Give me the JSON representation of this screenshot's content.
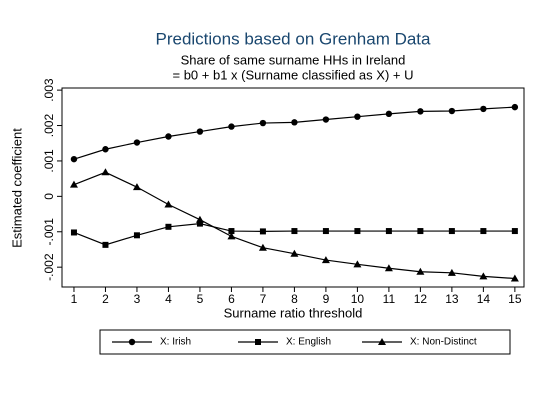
{
  "chart_data": {
    "type": "line",
    "title": "Predictions based on Grenham Data",
    "subtitle": [
      "Share of same surname HHs in Ireland",
      "= b0 + b1 x (Surname classified as X) + U"
    ],
    "x_label": "Surname ratio threshold",
    "y_label": "Estimated coefficient",
    "x": [
      1,
      2,
      3,
      4,
      5,
      6,
      7,
      8,
      9,
      10,
      11,
      12,
      13,
      14,
      15
    ],
    "series": [
      {
        "name": "X: Irish",
        "color": "#000000",
        "marker": "circle",
        "values": [
          0.00105,
          0.00133,
          0.00152,
          0.00169,
          0.00183,
          0.00197,
          0.00207,
          0.00209,
          0.00217,
          0.00225,
          0.00233,
          0.0024,
          0.00241,
          0.00247,
          0.00252
        ]
      },
      {
        "name": "X: English",
        "color": "#000000",
        "marker": "square",
        "values": [
          -0.00102,
          -0.00137,
          -0.0011,
          -0.00086,
          -0.00077,
          -0.00098,
          -0.00099,
          -0.00098,
          -0.00098,
          -0.00098,
          -0.00098,
          -0.00098,
          -0.00098,
          -0.00098,
          -0.00098
        ]
      },
      {
        "name": "X: Non-Distinct",
        "color": "#000000",
        "marker": "triangle",
        "values": [
          0.00033,
          0.00068,
          0.00026,
          -0.00023,
          -0.00066,
          -0.00113,
          -0.00145,
          -0.00162,
          -0.0018,
          -0.00192,
          -0.00203,
          -0.00213,
          -0.00216,
          -0.00226,
          -0.00232
        ]
      }
    ],
    "xlim": [
      0.62,
      15.29
    ],
    "xticks": [
      1,
      2,
      3,
      4,
      5,
      6,
      7,
      8,
      9,
      10,
      11,
      12,
      13,
      14,
      15
    ],
    "ylim": [
      -0.00256,
      0.00306
    ],
    "yticks": [
      {
        "value": 0.003,
        "label": ".003"
      },
      {
        "value": 0.002,
        "label": ".002"
      },
      {
        "value": 0.001,
        "label": ".001"
      },
      0,
      {
        "value": -0.001,
        "label": "-.001"
      },
      {
        "value": -0.002,
        "label": "-.002"
      }
    ],
    "title_color": "#1a476f",
    "grid": false,
    "legend_position": "bottom"
  }
}
